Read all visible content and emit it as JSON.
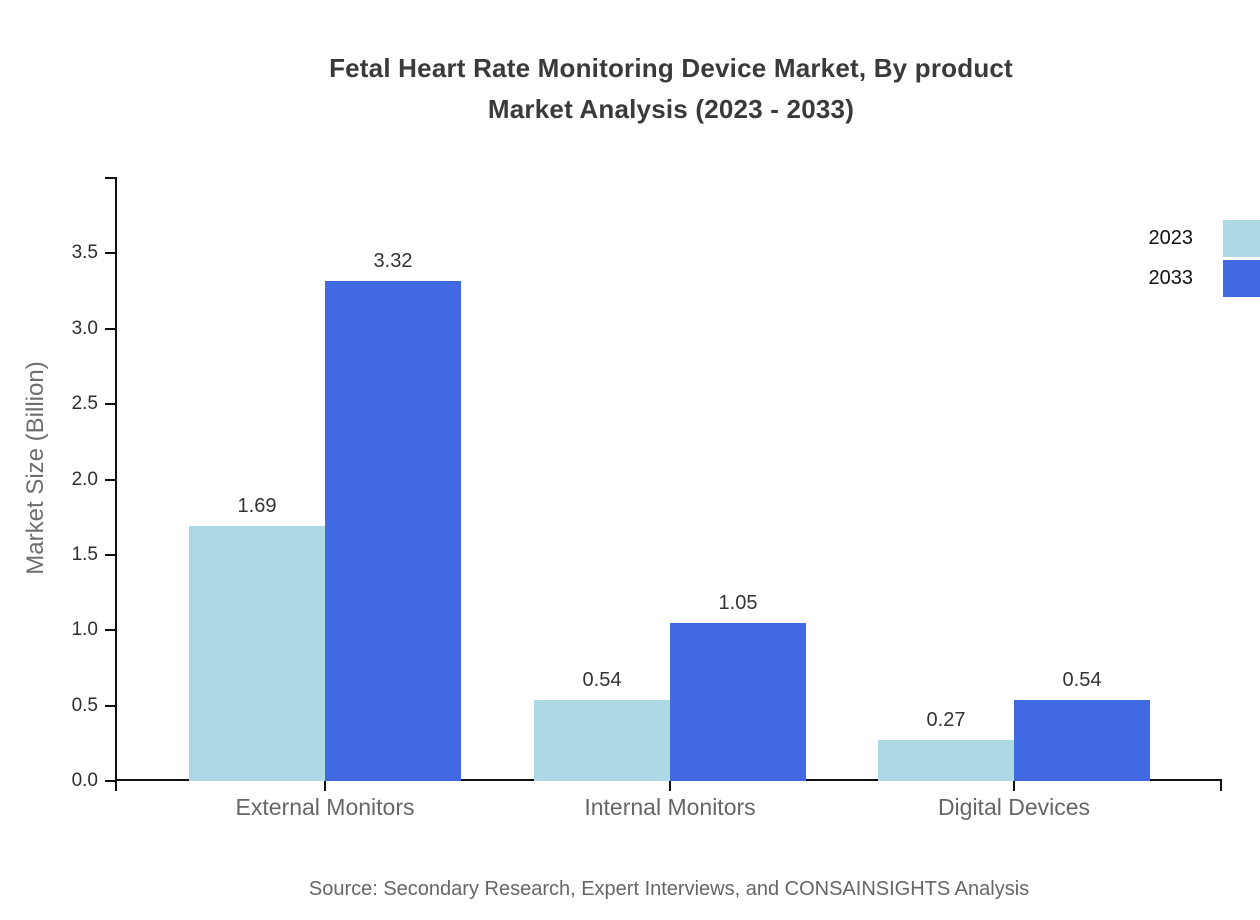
{
  "chart_data": {
    "type": "bar",
    "title_lines": [
      "Fetal Heart Rate Monitoring Device Market, By product",
      "Market Analysis (2023 - 2033)"
    ],
    "categories": [
      "External Monitors",
      "Internal Monitors",
      "Digital Devices"
    ],
    "series": [
      {
        "name": "2023",
        "color": "#add8e6",
        "values": [
          1.69,
          0.54,
          0.27
        ]
      },
      {
        "name": "2033",
        "color": "#4169e1",
        "values": [
          3.32,
          1.05,
          0.54
        ]
      }
    ],
    "ylabel": "Market Size (Billion)",
    "ylim": [
      0,
      4
    ],
    "yticks": [
      0.0,
      0.5,
      1.0,
      1.5,
      2.0,
      2.5,
      3.0,
      3.5
    ],
    "ytick_labels": [
      "0.0",
      "0.5",
      "1.0",
      "1.5",
      "2.0",
      "2.5",
      "3.0",
      "3.5"
    ],
    "grid": false,
    "legend_position": "upper-right-outside",
    "source": "Source: Secondary Research, Expert Interviews, and CONSAINSIGHTS Analysis"
  },
  "colors": {
    "axis": "#111111",
    "title_text": "#3a3a3a",
    "value_text": "#333333",
    "muted_text": "#666666"
  }
}
